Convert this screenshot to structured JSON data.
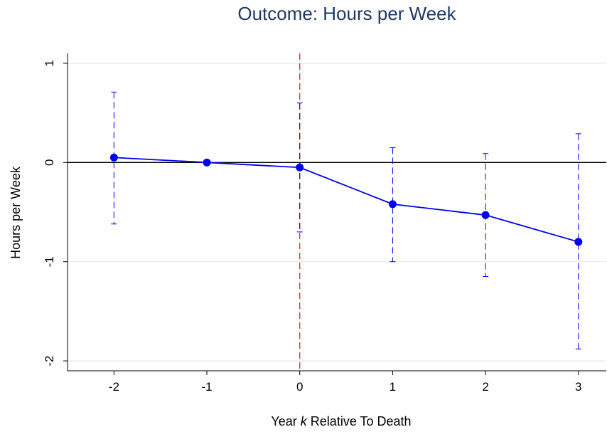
{
  "chart_data": {
    "type": "line",
    "title": "Outcome: Hours per Week",
    "xlabel_parts": [
      "Year ",
      "k",
      " Relative To Death"
    ],
    "ylabel": "Hours per Week",
    "x": [
      -2,
      -1,
      0,
      1,
      2,
      3
    ],
    "x_ticks": [
      "-2",
      "-1",
      "0",
      "1",
      "2",
      "3"
    ],
    "y_ticks": [
      1,
      0,
      -1,
      -2
    ],
    "xlim": [
      -2.5,
      3.3
    ],
    "ylim": [
      -2.1,
      1.1
    ],
    "series": [
      {
        "values": [
          0.05,
          0.0,
          -0.05,
          -0.42,
          -0.53,
          -0.8
        ],
        "ci_low": [
          -0.62,
          null,
          -0.7,
          -1.0,
          -1.15,
          -1.88
        ],
        "ci_high": [
          0.71,
          null,
          0.6,
          0.15,
          0.09,
          0.29
        ]
      }
    ],
    "reference_lines": {
      "horizontal_y": 0,
      "vertical_x": 0
    },
    "grid": true,
    "colors": {
      "series": "#0000ee",
      "vertical_reference": "#e8262a",
      "horizontal_reference": "#000000",
      "grid": "#e8eef4",
      "title": "#1f3864"
    }
  }
}
